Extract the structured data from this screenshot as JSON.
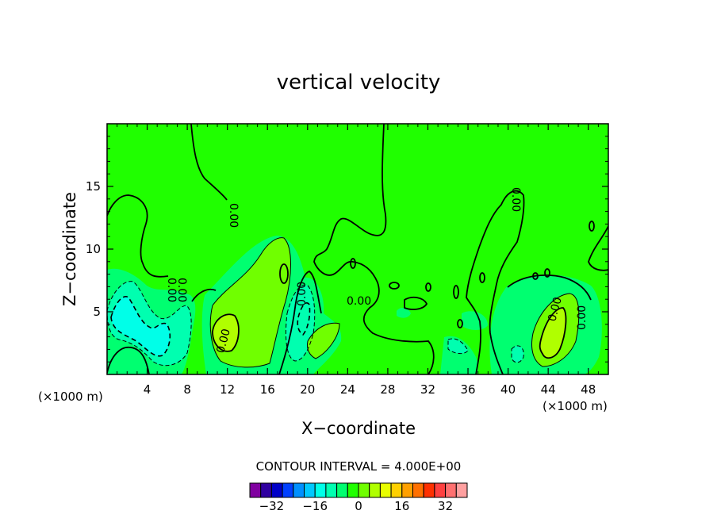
{
  "chart_data": {
    "type": "heatmap",
    "title": "vertical velocity",
    "xlabel": "X−coordinate",
    "ylabel": "Z−coordinate",
    "x_units": "(×1000 m)",
    "x_units_right": "(×1000 m)",
    "xlim": [
      0,
      50
    ],
    "ylim": [
      0,
      20
    ],
    "x_ticks": [
      "4",
      "8",
      "12",
      "16",
      "20",
      "24",
      "28",
      "32",
      "36",
      "40",
      "44",
      "48"
    ],
    "x_tick_values": [
      4,
      8,
      12,
      16,
      20,
      24,
      28,
      32,
      36,
      40,
      44,
      48
    ],
    "y_ticks": [
      "5",
      "10",
      "15"
    ],
    "y_tick_values": [
      5,
      10,
      15
    ],
    "contour_interval_text": "CONTOUR INTERVAL = 4.000E+00",
    "contour_interval": 4,
    "contour_labels": [
      "0.00",
      "0.00",
      "0.00",
      "0.00",
      "0.00",
      "0.00",
      "0.00",
      "0.00",
      "0.00"
    ],
    "colorbar": {
      "min": -40,
      "max": 40,
      "step": 4,
      "tick_labels": [
        "−32",
        "−16",
        "0",
        "16",
        "32"
      ],
      "tick_values": [
        -32,
        -16,
        0,
        16,
        32
      ],
      "colors": [
        "#8000a0",
        "#3000a0",
        "#0000c8",
        "#0040ff",
        "#0090ff",
        "#00c8ff",
        "#00ffe8",
        "#00ffb0",
        "#00ff70",
        "#20ff00",
        "#70ff00",
        "#b0ff00",
        "#e8ff00",
        "#ffd000",
        "#ffa000",
        "#ff7000",
        "#ff3000",
        "#ff4040",
        "#ff7070",
        "#ffa0a0"
      ]
    },
    "color_levels": {
      "bg": "#20ff00",
      "zero_band": "#00ff70",
      "neg1": "#00ffb0",
      "neg2": "#00ffe8",
      "pos1": "#70ff00",
      "pos2": "#b0ff00"
    },
    "features": [
      {
        "kind": "updraft",
        "x": 14.5,
        "z": 3.4,
        "max": 8
      },
      {
        "kind": "updraft",
        "x": 43.6,
        "z": 4.0,
        "max": 8
      },
      {
        "kind": "updraft",
        "x": 17.3,
        "z": 8.2,
        "max": 4
      },
      {
        "kind": "downdraft",
        "x": 2.2,
        "z": 5.2,
        "min": -8
      },
      {
        "kind": "downdraft",
        "x": 6.5,
        "z": 2.8,
        "min": -8
      },
      {
        "kind": "downdraft",
        "x": 19.2,
        "z": 4.0,
        "min": -8
      }
    ]
  }
}
